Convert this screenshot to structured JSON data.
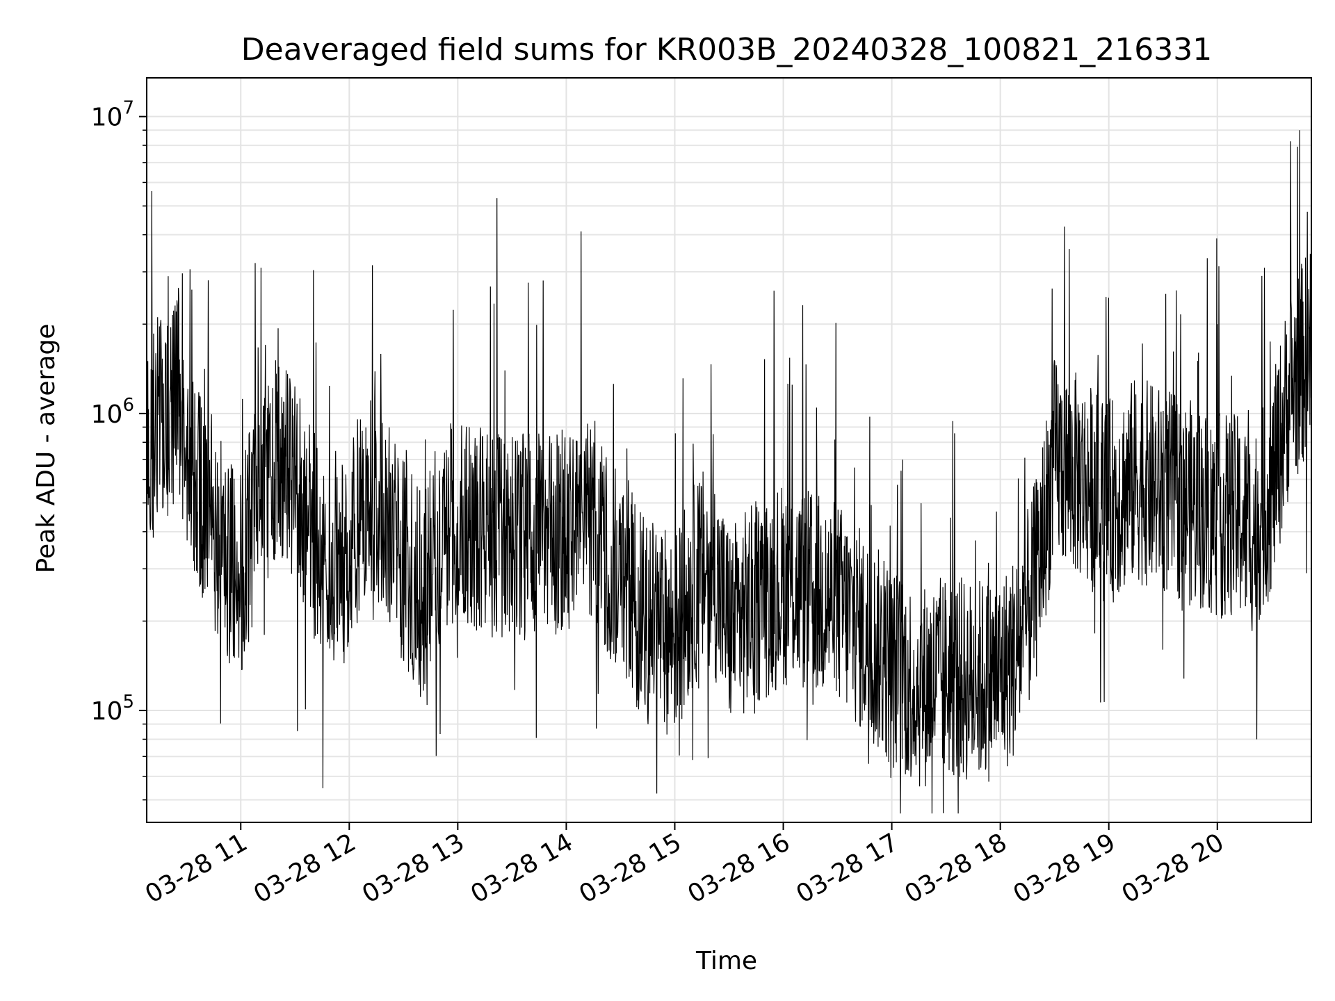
{
  "chart_data": {
    "type": "line",
    "title": "Deaveraged field sums for KR003B_20240328_100821_216331",
    "xlabel": "Time",
    "ylabel": "Peak ADU - average",
    "xlim": [
      "2024-03-28 10:08",
      "2024-03-28 20:52"
    ],
    "ylim": [
      42000,
      13500000
    ],
    "yscale": "log",
    "grid": true,
    "x_ticks": [
      {
        "t": "2024-03-28 11:00",
        "label": "03-28 11"
      },
      {
        "t": "2024-03-28 12:00",
        "label": "03-28 12"
      },
      {
        "t": "2024-03-28 13:00",
        "label": "03-28 13"
      },
      {
        "t": "2024-03-28 14:00",
        "label": "03-28 14"
      },
      {
        "t": "2024-03-28 15:00",
        "label": "03-28 15"
      },
      {
        "t": "2024-03-28 16:00",
        "label": "03-28 16"
      },
      {
        "t": "2024-03-28 17:00",
        "label": "03-28 17"
      },
      {
        "t": "2024-03-28 18:00",
        "label": "03-28 18"
      },
      {
        "t": "2024-03-28 19:00",
        "label": "03-28 19"
      },
      {
        "t": "2024-03-28 20:00",
        "label": "03-28 20"
      }
    ],
    "y_ticks": [
      {
        "v": 100000,
        "base": "10",
        "exp": "5"
      },
      {
        "v": 1000000,
        "base": "10",
        "exp": "6"
      },
      {
        "v": 10000000,
        "base": "10",
        "exp": "7"
      }
    ],
    "line_color": "#000000",
    "series": [
      {
        "x": [
          "2024-03-28 10:08",
          "2024-03-28 10:15",
          "2024-03-28 10:20",
          "2024-03-28 10:25",
          "2024-03-28 10:30",
          "2024-03-28 10:40",
          "2024-03-28 10:50",
          "2024-03-28 11:00",
          "2024-03-28 11:10",
          "2024-03-28 11:20",
          "2024-03-28 11:30",
          "2024-03-28 11:40",
          "2024-03-28 11:50",
          "2024-03-28 12:00",
          "2024-03-28 12:10",
          "2024-03-28 12:20",
          "2024-03-28 12:30",
          "2024-03-28 12:40",
          "2024-03-28 12:50",
          "2024-03-28 13:00",
          "2024-03-28 13:15",
          "2024-03-28 13:30",
          "2024-03-28 13:45",
          "2024-03-28 14:00",
          "2024-03-28 14:15",
          "2024-03-28 14:30",
          "2024-03-28 14:45",
          "2024-03-28 15:00",
          "2024-03-28 15:10",
          "2024-03-28 15:20",
          "2024-03-28 15:30",
          "2024-03-28 15:45",
          "2024-03-28 16:00",
          "2024-03-28 16:15",
          "2024-03-28 16:30",
          "2024-03-28 16:45",
          "2024-03-28 17:00",
          "2024-03-28 17:15",
          "2024-03-28 17:30",
          "2024-03-28 17:45",
          "2024-03-28 18:00",
          "2024-03-28 18:10",
          "2024-03-28 18:20",
          "2024-03-28 18:30",
          "2024-03-28 18:45",
          "2024-03-28 19:00",
          "2024-03-28 19:15",
          "2024-03-28 19:30",
          "2024-03-28 19:45",
          "2024-03-28 20:00",
          "2024-03-28 20:10",
          "2024-03-28 20:20",
          "2024-03-28 20:30",
          "2024-03-28 20:40",
          "2024-03-28 20:52"
        ],
        "y": [
          650000,
          1100000,
          900000,
          1300000,
          650000,
          500000,
          350000,
          280000,
          550000,
          700000,
          600000,
          400000,
          250000,
          350000,
          550000,
          450000,
          320000,
          240000,
          380000,
          450000,
          400000,
          380000,
          390000,
          400000,
          440000,
          280000,
          200000,
          180000,
          260000,
          320000,
          190000,
          230000,
          270000,
          250000,
          230000,
          180000,
          140000,
          120000,
          130000,
          125000,
          130000,
          160000,
          280000,
          700000,
          600000,
          500000,
          600000,
          550000,
          500000,
          450000,
          450000,
          400000,
          550000,
          1200000,
          1700000
        ]
      }
    ]
  }
}
